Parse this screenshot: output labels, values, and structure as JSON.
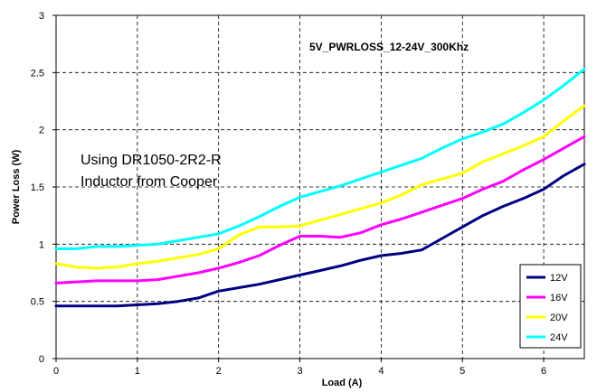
{
  "chart_data": {
    "type": "line",
    "title": "5V_PWRLOSS_12-24V_300Khz",
    "annotation": [
      "Using DR1050-2R2-R",
      "Inductor from Cooper"
    ],
    "xlabel": "Load (A)",
    "ylabel": "Power Loss (W)",
    "xlim": [
      0,
      6.5
    ],
    "ylim": [
      0,
      3
    ],
    "xticks": [
      0,
      1,
      2,
      3,
      4,
      5,
      6
    ],
    "yticks": [
      0,
      0.5,
      1,
      1.5,
      2,
      2.5,
      3
    ],
    "ytick_labels": [
      "0",
      "0.5",
      "1",
      "1.5",
      "2",
      "2.5",
      "3"
    ],
    "grid": true,
    "legend_position": "bottom-right",
    "series": [
      {
        "name": "12V",
        "color": "#000080",
        "x": [
          0,
          0.25,
          0.5,
          0.75,
          1.0,
          1.25,
          1.5,
          1.75,
          2.0,
          2.25,
          2.5,
          2.75,
          3.0,
          3.25,
          3.5,
          3.75,
          4.0,
          4.25,
          4.5,
          4.75,
          5.0,
          5.25,
          5.5,
          5.75,
          6.0,
          6.25,
          6.5
        ],
        "y": [
          0.46,
          0.46,
          0.46,
          0.46,
          0.47,
          0.48,
          0.5,
          0.53,
          0.59,
          0.62,
          0.65,
          0.69,
          0.73,
          0.77,
          0.81,
          0.86,
          0.9,
          0.92,
          0.95,
          1.05,
          1.15,
          1.25,
          1.33,
          1.4,
          1.48,
          1.6,
          1.7
        ]
      },
      {
        "name": "16V",
        "color": "#ff00ff",
        "x": [
          0,
          0.25,
          0.5,
          0.75,
          1.0,
          1.25,
          1.5,
          1.75,
          2.0,
          2.25,
          2.5,
          2.75,
          3.0,
          3.25,
          3.5,
          3.75,
          4.0,
          4.25,
          4.5,
          4.75,
          5.0,
          5.25,
          5.5,
          5.75,
          6.0,
          6.25,
          6.5
        ],
        "y": [
          0.66,
          0.67,
          0.68,
          0.68,
          0.68,
          0.69,
          0.72,
          0.75,
          0.79,
          0.84,
          0.9,
          0.99,
          1.07,
          1.07,
          1.06,
          1.1,
          1.17,
          1.22,
          1.28,
          1.34,
          1.4,
          1.48,
          1.55,
          1.65,
          1.74,
          1.84,
          1.94
        ]
      },
      {
        "name": "20V",
        "color": "#ffff00",
        "x": [
          0,
          0.25,
          0.5,
          0.75,
          1.0,
          1.25,
          1.5,
          1.75,
          2.0,
          2.25,
          2.5,
          2.75,
          3.0,
          3.25,
          3.5,
          3.75,
          4.0,
          4.25,
          4.5,
          4.75,
          5.0,
          5.25,
          5.5,
          5.75,
          6.0,
          6.25,
          6.5
        ],
        "y": [
          0.83,
          0.8,
          0.79,
          0.8,
          0.83,
          0.85,
          0.88,
          0.91,
          0.96,
          1.08,
          1.15,
          1.15,
          1.16,
          1.21,
          1.26,
          1.31,
          1.36,
          1.43,
          1.52,
          1.57,
          1.62,
          1.72,
          1.79,
          1.86,
          1.94,
          2.08,
          2.21
        ]
      },
      {
        "name": "24V",
        "color": "#00ffff",
        "x": [
          0,
          0.25,
          0.5,
          0.75,
          1.0,
          1.25,
          1.5,
          1.75,
          2.0,
          2.25,
          2.5,
          2.75,
          3.0,
          3.25,
          3.5,
          3.75,
          4.0,
          4.25,
          4.5,
          4.75,
          5.0,
          5.25,
          5.5,
          5.75,
          6.0,
          6.25,
          6.5
        ],
        "y": [
          0.96,
          0.96,
          0.98,
          0.98,
          0.99,
          1.0,
          1.03,
          1.06,
          1.09,
          1.16,
          1.24,
          1.33,
          1.41,
          1.46,
          1.51,
          1.57,
          1.63,
          1.69,
          1.75,
          1.84,
          1.92,
          1.98,
          2.05,
          2.15,
          2.26,
          2.39,
          2.53
        ]
      }
    ]
  }
}
